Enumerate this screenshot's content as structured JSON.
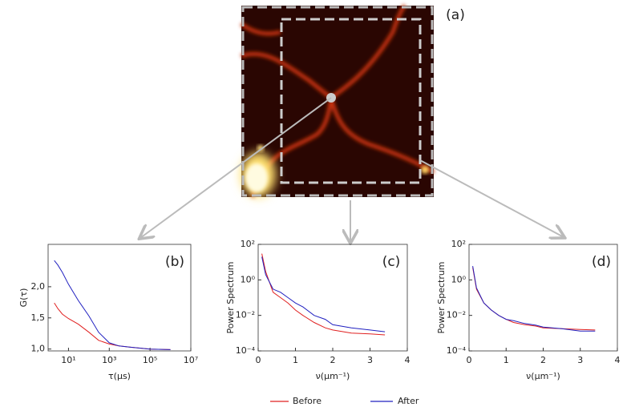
{
  "panel_a": {
    "label": "(a)"
  },
  "chart_data": [
    {
      "type": "line",
      "label": "(b)",
      "ylabel": "G(τ)",
      "xlabel": "τ(μs)",
      "xlog": true,
      "xlim": [
        1,
        10000000
      ],
      "ylim": [
        0.97,
        2.68
      ],
      "xticks": [
        {
          "value": 10,
          "label": "10¹"
        },
        {
          "value": 1000,
          "label": "10³"
        },
        {
          "value": 100000,
          "label": "10⁵"
        },
        {
          "value": 10000000,
          "label": "10⁷"
        }
      ],
      "yticks": [
        {
          "value": 1.0,
          "label": "1,0"
        },
        {
          "value": 1.5,
          "label": "1,5"
        },
        {
          "value": 2.0,
          "label": "2,0"
        }
      ],
      "x": [
        2,
        3,
        5,
        10,
        30,
        100,
        300,
        1000,
        3000,
        10000,
        100000,
        1000000
      ],
      "series": [
        {
          "name": "Before",
          "color": "#e02020",
          "values": [
            1.74,
            1.65,
            1.56,
            1.49,
            1.4,
            1.27,
            1.14,
            1.08,
            1.05,
            1.03,
            1.0,
            0.99
          ]
        },
        {
          "name": "After",
          "color": "#2020c0",
          "values": [
            2.42,
            2.35,
            2.23,
            2.04,
            1.78,
            1.53,
            1.27,
            1.1,
            1.05,
            1.03,
            1.0,
            0.99
          ]
        }
      ]
    },
    {
      "type": "line",
      "label": "(c)",
      "ylabel": "Power Spectrum",
      "xlabel": "ν(μm⁻¹)",
      "ylog": true,
      "xlim": [
        0,
        4
      ],
      "ylim": [
        0.0001,
        100
      ],
      "xticks": [
        0,
        1,
        2,
        3,
        4
      ],
      "yticks": [
        {
          "value": 0.0001,
          "label": "10⁻⁴"
        },
        {
          "value": 0.01,
          "label": "10⁻²"
        },
        {
          "value": 1,
          "label": "10⁰"
        },
        {
          "value": 100,
          "label": "10²"
        }
      ],
      "x": [
        0.1,
        0.2,
        0.4,
        0.6,
        0.8,
        1.0,
        1.2,
        1.5,
        1.8,
        2.0,
        2.5,
        3.0,
        3.4
      ],
      "series": [
        {
          "name": "Before",
          "color": "#e02020",
          "values": [
            30,
            3,
            0.2,
            0.1,
            0.05,
            0.02,
            0.01,
            0.004,
            0.002,
            0.0015,
            0.001,
            0.0009,
            0.0008
          ]
        },
        {
          "name": "After",
          "color": "#2020c0",
          "values": [
            20,
            2,
            0.3,
            0.2,
            0.1,
            0.05,
            0.03,
            0.01,
            0.006,
            0.003,
            0.002,
            0.0015,
            0.0012
          ]
        }
      ]
    },
    {
      "type": "line",
      "label": "(d)",
      "ylabel": "Power Spectrum",
      "xlabel": "ν(μm⁻¹)",
      "ylog": true,
      "xlim": [
        0,
        4
      ],
      "ylim": [
        0.0001,
        100
      ],
      "xticks": [
        0,
        1,
        2,
        3,
        4
      ],
      "yticks": [
        {
          "value": 0.0001,
          "label": "10⁻⁴"
        },
        {
          "value": 0.01,
          "label": "10⁻²"
        },
        {
          "value": 1,
          "label": "10⁰"
        },
        {
          "value": 100,
          "label": "10²"
        }
      ],
      "x": [
        0.1,
        0.2,
        0.4,
        0.6,
        0.8,
        1.0,
        1.2,
        1.5,
        1.8,
        2.0,
        2.5,
        3.0,
        3.4
      ],
      "series": [
        {
          "name": "Before",
          "color": "#e02020",
          "values": [
            5,
            0.3,
            0.05,
            0.02,
            0.01,
            0.006,
            0.004,
            0.003,
            0.0025,
            0.002,
            0.0018,
            0.0016,
            0.0015
          ]
        },
        {
          "name": "After",
          "color": "#2020c0",
          "values": [
            6,
            0.35,
            0.05,
            0.02,
            0.01,
            0.006,
            0.005,
            0.0035,
            0.0028,
            0.0022,
            0.0018,
            0.0013,
            0.0013
          ]
        }
      ]
    }
  ]
}
